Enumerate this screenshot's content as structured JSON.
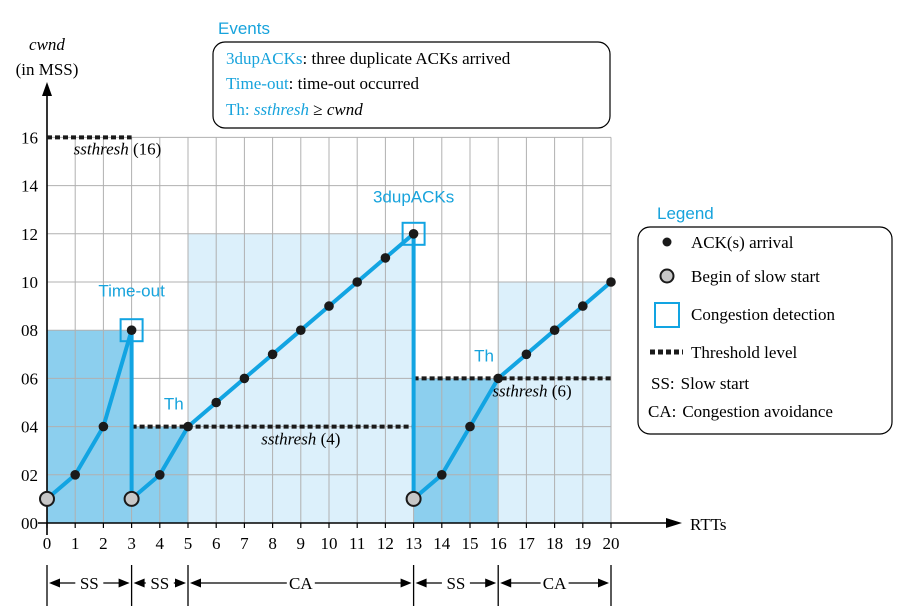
{
  "chart_data": {
    "type": "line",
    "ylabel_lines": [
      "cwnd",
      "(in MSS)"
    ],
    "xlabel": "RTTs",
    "xlim": [
      0,
      20
    ],
    "ylim": [
      0,
      16
    ],
    "x_ticks": [
      "0",
      "1",
      "2",
      "3",
      "4",
      "5",
      "6",
      "7",
      "8",
      "9",
      "10",
      "11",
      "12",
      "13",
      "14",
      "15",
      "16",
      "17",
      "18",
      "19",
      "20"
    ],
    "y_ticks": [
      {
        "v": 0,
        "label": "00"
      },
      {
        "v": 2,
        "label": "02"
      },
      {
        "v": 4,
        "label": "04"
      },
      {
        "v": 6,
        "label": "06"
      },
      {
        "v": 8,
        "label": "08"
      },
      {
        "v": 10,
        "label": "10"
      },
      {
        "v": 12,
        "label": "12"
      },
      {
        "v": 14,
        "label": "14"
      },
      {
        "v": 16,
        "label": "16"
      }
    ],
    "grid": true,
    "series": [
      {
        "points": [
          [
            0,
            1
          ],
          [
            1,
            2
          ],
          [
            2,
            4
          ],
          [
            3,
            8
          ]
        ]
      },
      {
        "points": [
          [
            3,
            8
          ],
          [
            3,
            1
          ]
        ]
      },
      {
        "points": [
          [
            3,
            1
          ],
          [
            4,
            2
          ],
          [
            5,
            4
          ],
          [
            6,
            5
          ],
          [
            7,
            6
          ],
          [
            8,
            7
          ],
          [
            9,
            8
          ],
          [
            10,
            9
          ],
          [
            11,
            10
          ],
          [
            12,
            11
          ],
          [
            13,
            12
          ]
        ]
      },
      {
        "points": [
          [
            13,
            12
          ],
          [
            13,
            1
          ]
        ]
      },
      {
        "points": [
          [
            13,
            1
          ],
          [
            14,
            2
          ],
          [
            15,
            4
          ],
          [
            16,
            6
          ],
          [
            17,
            7
          ],
          [
            18,
            8
          ],
          [
            19,
            9
          ],
          [
            20,
            10
          ]
        ]
      }
    ],
    "ack_points": [
      [
        1,
        2
      ],
      [
        2,
        4
      ],
      [
        4,
        2
      ],
      [
        5,
        4
      ],
      [
        6,
        5
      ],
      [
        7,
        6
      ],
      [
        8,
        7
      ],
      [
        9,
        8
      ],
      [
        10,
        9
      ],
      [
        11,
        10
      ],
      [
        12,
        11
      ],
      [
        14,
        2
      ],
      [
        15,
        4
      ],
      [
        16,
        6
      ],
      [
        17,
        7
      ],
      [
        18,
        8
      ],
      [
        19,
        9
      ],
      [
        20,
        10
      ]
    ],
    "slow_start_points": [
      [
        0,
        1
      ],
      [
        3,
        1
      ],
      [
        13,
        1
      ]
    ],
    "congestion_points": [
      [
        3,
        8
      ],
      [
        13,
        12
      ]
    ],
    "regions": [
      {
        "x0": 0,
        "x1": 3,
        "y1": 8,
        "shade": "dark"
      },
      {
        "x0": 3,
        "x1": 5,
        "y1": 4,
        "shade": "dark"
      },
      {
        "x0": 5,
        "x1": 13,
        "y1": 12,
        "shade": "light"
      },
      {
        "x0": 13,
        "x1": 16,
        "y1": 6,
        "shade": "dark"
      },
      {
        "x0": 16,
        "x1": 20,
        "y1": 10,
        "shade": "light"
      }
    ],
    "thresholds": [
      {
        "x0": 0,
        "x1": 3,
        "y": 16
      },
      {
        "x0": 3,
        "x1": 13,
        "y": 4
      },
      {
        "x0": 13,
        "x1": 20,
        "y": 6
      }
    ],
    "annotations": [
      {
        "text": "ssthresh",
        "suffix": " (16)",
        "x": 2.5,
        "y": 15.3,
        "anchor": "middle",
        "color": "black"
      },
      {
        "text": "ssthresh",
        "suffix": " (4)",
        "x": 9,
        "y": 3.25,
        "anchor": "middle",
        "color": "black"
      },
      {
        "text": "ssthresh",
        "suffix": " (6)",
        "x": 17.2,
        "y": 5.25,
        "anchor": "middle",
        "color": "black"
      },
      {
        "text": "Time-out",
        "x": 3,
        "y": 9.4,
        "anchor": "middle",
        "color": "cyan"
      },
      {
        "text": "3dupACKs",
        "x": 13,
        "y": 13.3,
        "anchor": "middle",
        "color": "cyan"
      },
      {
        "text": "Th",
        "x": 4.85,
        "y": 4.7,
        "anchor": "end",
        "color": "cyan"
      },
      {
        "text": "Th",
        "x": 15.85,
        "y": 6.7,
        "anchor": "end",
        "color": "cyan"
      }
    ],
    "phases": [
      {
        "label": "SS",
        "x0": 0,
        "x1": 3
      },
      {
        "label": "SS",
        "x0": 3,
        "x1": 5
      },
      {
        "label": "CA",
        "x0": 5,
        "x1": 13
      },
      {
        "label": "SS",
        "x0": 13,
        "x1": 16
      },
      {
        "label": "CA",
        "x0": 16,
        "x1": 20
      }
    ]
  },
  "events": {
    "title": "Events",
    "items": [
      {
        "key": "3dupACKs",
        "text": ": three duplicate ACKs arrived"
      },
      {
        "key": "Time-out",
        "text": ": time-out occurred"
      },
      {
        "key": "Th: ",
        "italic": "ssthresh",
        "text": " ≥  ",
        "italic2": "cwnd"
      }
    ]
  },
  "legend": {
    "title": "Legend",
    "items": [
      {
        "symbol": "ack-dot",
        "label": "ACK(s) arrival"
      },
      {
        "symbol": "slow-start-dot",
        "label": "Begin of slow start"
      },
      {
        "symbol": "congestion-square",
        "label": "Congestion detection"
      },
      {
        "symbol": "threshold-dash",
        "label": "Threshold level"
      },
      {
        "symbol": "text",
        "key": "SS:",
        "label": "Slow start"
      },
      {
        "symbol": "text",
        "key": "CA:",
        "label": "Congestion avoidance"
      }
    ]
  },
  "colors": {
    "line": "#12a4e2",
    "region_dark": "#8ccfee",
    "region_light": "#dcf0fb",
    "accent_text": "#17a3dc",
    "grid": "#b0b0b0",
    "threshold": "#1a1a1a"
  }
}
